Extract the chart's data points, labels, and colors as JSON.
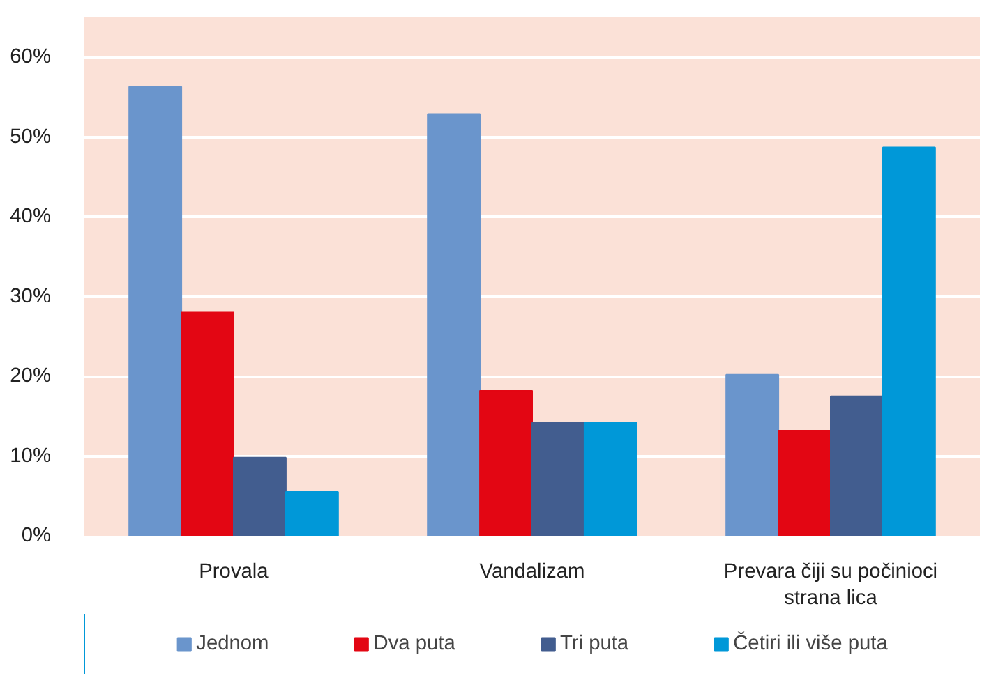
{
  "chart_data": {
    "type": "bar",
    "categories": [
      "Provala",
      "Vandalizam",
      "Prevara čiji su počinioci strana lica"
    ],
    "series": [
      {
        "name": "Jednom",
        "color": "#6a95cc",
        "values": [
          56.3,
          52.9,
          20.2
        ]
      },
      {
        "name": "Dva puta",
        "color": "#e30613",
        "values": [
          28.0,
          18.2,
          13.2
        ]
      },
      {
        "name": "Tri puta",
        "color": "#425d8f",
        "values": [
          9.8,
          14.2,
          17.5
        ]
      },
      {
        "name": "Četiri ili više puta",
        "color": "#0098d8",
        "values": [
          5.5,
          14.2,
          48.7
        ]
      }
    ],
    "ylim": [
      0,
      65
    ],
    "yticks": [
      {
        "value": 0,
        "label": "0%"
      },
      {
        "value": 10,
        "label": "10%"
      },
      {
        "value": 20,
        "label": "20%"
      },
      {
        "value": 30,
        "label": "30%"
      },
      {
        "value": 40,
        "label": "40%"
      },
      {
        "value": 50,
        "label": "50%"
      },
      {
        "value": 60,
        "label": "60%"
      }
    ],
    "grid": "y",
    "legend": "bottom"
  }
}
